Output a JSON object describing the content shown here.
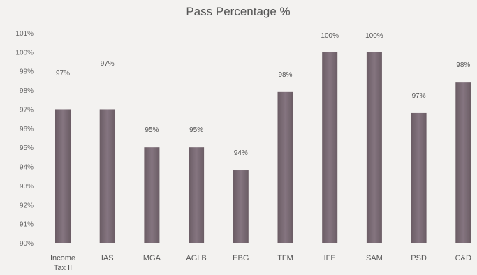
{
  "chart_data": {
    "type": "bar",
    "title": "Pass Percentage %",
    "xlabel": "",
    "ylabel": "",
    "ylim": [
      90,
      101
    ],
    "yticks": [
      90,
      91,
      92,
      93,
      94,
      95,
      96,
      97,
      98,
      99,
      100,
      101
    ],
    "ytick_labels": [
      "90%",
      "91%",
      "92%",
      "93%",
      "94%",
      "95%",
      "96%",
      "97%",
      "98%",
      "99%",
      "100%",
      "101%"
    ],
    "grid": false,
    "legend": "none",
    "categories": [
      [
        "Income",
        "Tax II"
      ],
      [
        "IAS"
      ],
      [
        "MGA"
      ],
      [
        "AGLB"
      ],
      [
        "EBG"
      ],
      [
        "TFM"
      ],
      [
        "IFE"
      ],
      [
        "SAM"
      ],
      [
        "PSD"
      ],
      [
        "C&D"
      ]
    ],
    "values": [
      97,
      97,
      95,
      95,
      93.8,
      97.9,
      100,
      100,
      96.8,
      98.4
    ],
    "data_labels": [
      "97%",
      "97%",
      "95%",
      "95%",
      "94%",
      "98%",
      "100%",
      "100%",
      "97%",
      "98%"
    ],
    "bar_color": "#7a6a72"
  }
}
